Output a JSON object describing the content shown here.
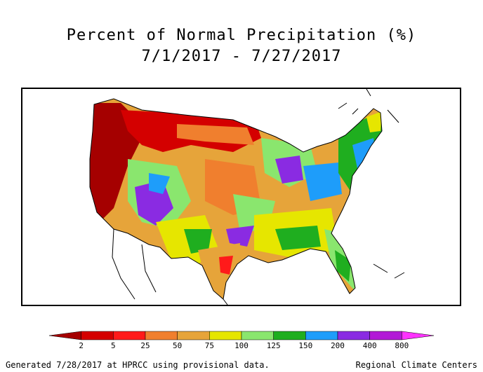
{
  "title": {
    "line1": "Percent of Normal Precipitation (%)",
    "line2": "7/1/2017 - 7/27/2017"
  },
  "legend": {
    "ticks": [
      "2",
      "5",
      "25",
      "50",
      "75",
      "100",
      "125",
      "150",
      "200",
      "400",
      "800"
    ],
    "colors": [
      "#a50000",
      "#d40000",
      "#ff1a1a",
      "#f07f2e",
      "#e6a43a",
      "#e6e600",
      "#8ae66e",
      "#1fae1f",
      "#1e9dfa",
      "#8a2be2",
      "#b219d6",
      "#ff33ff"
    ]
  },
  "footer": {
    "left": "Generated 7/28/2017 at HPRCC using provisional data.",
    "right": "Regional Climate Centers"
  }
}
